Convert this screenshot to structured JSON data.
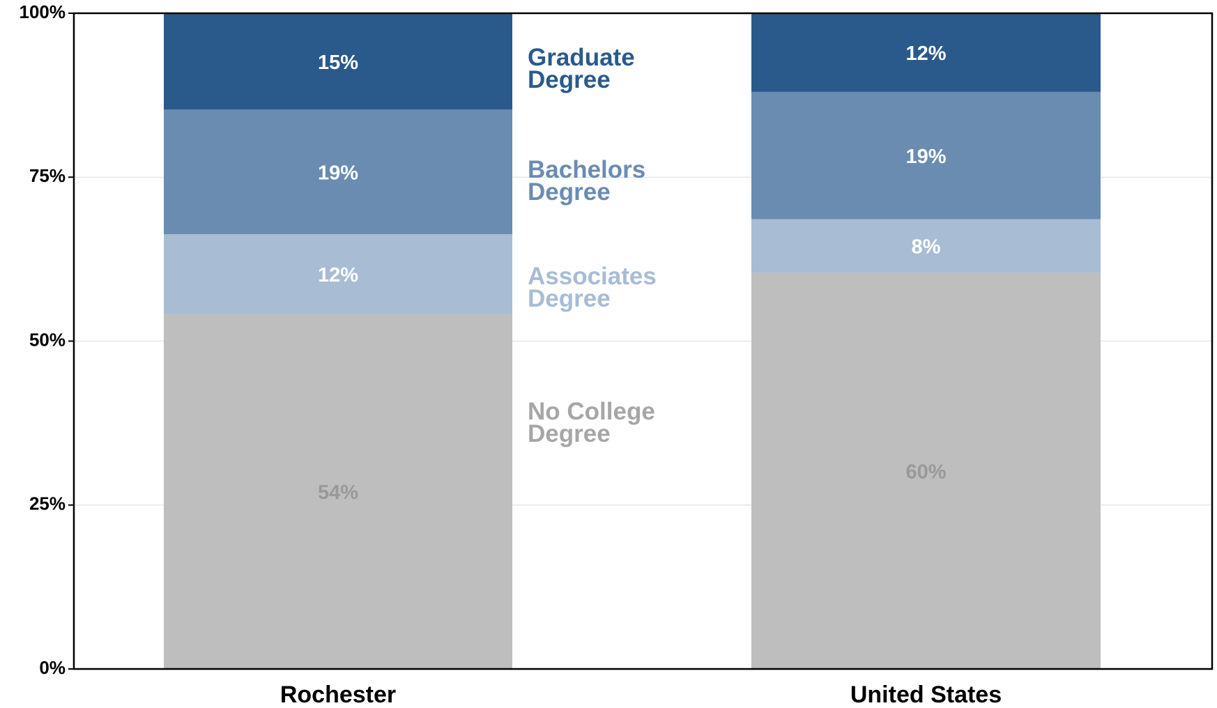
{
  "chart_data": {
    "type": "stacked_bar",
    "categories": [
      "Rochester",
      "United States"
    ],
    "series": [
      {
        "name": "No College Degree",
        "color": "#bebebe",
        "label_color": "#999999",
        "legend_color": "#a6a6a6",
        "values": [
          54.1,
          60.4
        ],
        "value_labels": [
          "54%",
          "60%"
        ]
      },
      {
        "name": "Associates Degree",
        "color": "#a8bcd4",
        "label_color": "#ffffff",
        "legend_color": "#a8bcd4",
        "values": [
          12.2,
          8.2
        ],
        "value_labels": [
          "12%",
          "8%"
        ]
      },
      {
        "name": "Bachelors Degree",
        "color": "#6a8cb1",
        "label_color": "#ffffff",
        "legend_color": "#6a8cb1",
        "values": [
          19.0,
          19.4
        ],
        "value_labels": [
          "19%",
          "19%"
        ]
      },
      {
        "name": "Graduate Degree",
        "color": "#2a5a8c",
        "label_color": "#ffffff",
        "legend_color": "#2a5a8c",
        "values": [
          14.7,
          12.0
        ],
        "value_labels": [
          "15%",
          "12%"
        ]
      }
    ],
    "ylim": [
      0,
      100
    ],
    "yticks": [
      {
        "value": 0,
        "label": "0%"
      },
      {
        "value": 25,
        "label": "25%"
      },
      {
        "value": 50,
        "label": "50%"
      },
      {
        "value": 75,
        "label": "75%"
      },
      {
        "value": 100,
        "label": "100%"
      }
    ],
    "grid": true
  }
}
